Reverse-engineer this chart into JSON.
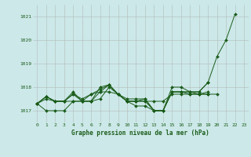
{
  "title": "Graphe pression niveau de la mer (hPa)",
  "bg_color": "#cce8e8",
  "line_color": "#1a5c1a",
  "grid_color": "#aaaaaa",
  "xlim": [
    -0.5,
    23.5
  ],
  "ylim": [
    1016.5,
    1021.5
  ],
  "yticks": [
    1017,
    1018,
    1019,
    1020,
    1021
  ],
  "xticks": [
    0,
    1,
    2,
    3,
    4,
    5,
    6,
    7,
    8,
    9,
    10,
    11,
    12,
    13,
    14,
    15,
    16,
    17,
    18,
    19,
    20,
    21,
    22,
    23
  ],
  "lines": [
    [
      1017.3,
      1017.6,
      1017.4,
      1017.4,
      1017.7,
      1017.5,
      1017.7,
      1017.8,
      1018.1,
      1017.7,
      1017.5,
      1017.5,
      1017.5,
      1017.0,
      1017.0,
      1018.0,
      1018.0,
      1017.8,
      1017.8,
      1018.2,
      1019.3,
      1020.0,
      1021.1,
      null
    ],
    [
      1017.3,
      1017.6,
      1017.4,
      1017.4,
      1017.8,
      1017.4,
      1017.4,
      1018.0,
      1018.1,
      1017.7,
      1017.4,
      1017.2,
      1017.2,
      1017.0,
      1017.0,
      1017.8,
      1017.8,
      1017.7,
      1017.7,
      1017.7,
      1017.7,
      null,
      null,
      null
    ],
    [
      1017.3,
      1017.6,
      1017.4,
      1017.4,
      1017.7,
      1017.4,
      1017.7,
      1017.9,
      1018.1,
      1017.7,
      1017.4,
      1017.4,
      1017.4,
      1017.4,
      1017.4,
      1017.7,
      1017.7,
      1017.7,
      1017.7,
      1017.7,
      null,
      null,
      null,
      null
    ],
    [
      1017.3,
      1017.5,
      1017.4,
      1017.4,
      1017.4,
      1017.4,
      1017.4,
      1017.8,
      1017.8,
      1017.7,
      1017.4,
      1017.4,
      1017.4,
      1017.0,
      1017.0,
      1017.8,
      1017.8,
      1017.8,
      1017.8,
      1018.2,
      null,
      null,
      null,
      null
    ],
    [
      1017.3,
      1017.0,
      1017.0,
      1017.0,
      1017.4,
      1017.4,
      1017.4,
      1017.5,
      1018.0,
      1017.7,
      1017.4,
      1017.4,
      1017.5,
      1017.0,
      1017.0,
      1017.8,
      1017.8,
      1017.8,
      1017.7,
      1017.8,
      null,
      null,
      null,
      null
    ]
  ],
  "figsize": [
    3.2,
    2.0
  ],
  "dpi": 100
}
